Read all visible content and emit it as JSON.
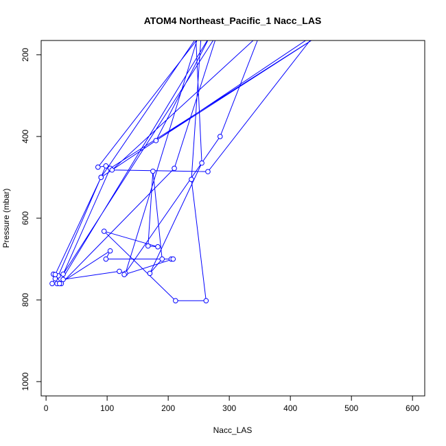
{
  "chart_data": {
    "type": "line",
    "title": "ATOM4 Northeast_Pacific_1 Nacc_LAS",
    "xlabel": "Nacc_LAS",
    "ylabel": "Pressure (mbar)",
    "xlim": [
      -8,
      620
    ],
    "ylim": [
      1035,
      165
    ],
    "y_reversed": true,
    "grid": false,
    "legend": "none",
    "x_ticks": [
      0,
      100,
      200,
      300,
      400,
      500,
      600
    ],
    "y_ticks": [
      200,
      400,
      600,
      800,
      1000
    ],
    "series_color": "#0000ff",
    "marker": "open-circle",
    "series": [
      {
        "points": [
          [
            245,
            150
          ],
          [
            255,
            465
          ],
          [
            170,
            735
          ],
          [
            190,
            700
          ],
          [
            175,
            485
          ],
          [
            167,
            668
          ],
          [
            183,
            670
          ],
          [
            95,
            632
          ],
          [
            212,
            802
          ],
          [
            262,
            802
          ],
          [
            238,
            505
          ],
          [
            254,
            150
          ],
          [
            85,
            475
          ],
          [
            98,
            472
          ],
          [
            20,
            741
          ],
          [
            12,
            737
          ],
          [
            15,
            748
          ],
          [
            10,
            760
          ],
          [
            18,
            760
          ],
          [
            28,
            750
          ],
          [
            120,
            730
          ],
          [
            130,
            735
          ],
          [
            250,
            150
          ],
          [
            90,
            500
          ],
          [
            15,
            738
          ],
          [
            25,
            760
          ],
          [
            210,
            478
          ],
          [
            280,
            150
          ],
          [
            28,
            737
          ],
          [
            105,
            478
          ],
          [
            450,
            150
          ],
          [
            180,
            410
          ],
          [
            270,
            150
          ],
          [
            22,
            760
          ],
          [
            105,
            680
          ],
          [
            98,
            700
          ],
          [
            205,
            700
          ],
          [
            208,
            700
          ],
          [
            128,
            738
          ],
          [
            285,
            400
          ],
          [
            350,
            150
          ],
          [
            108,
            482
          ],
          [
            265,
            486
          ],
          [
            440,
            150
          ],
          [
            90,
            500
          ]
        ]
      }
    ]
  }
}
